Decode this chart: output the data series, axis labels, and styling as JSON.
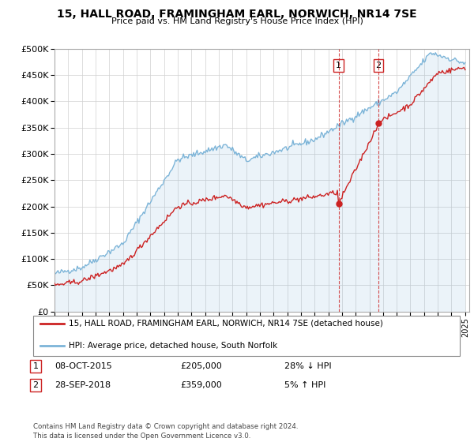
{
  "title": "15, HALL ROAD, FRAMINGHAM EARL, NORWICH, NR14 7SE",
  "subtitle": "Price paid vs. HM Land Registry's House Price Index (HPI)",
  "legend_line1": "15, HALL ROAD, FRAMINGHAM EARL, NORWICH, NR14 7SE (detached house)",
  "legend_line2": "HPI: Average price, detached house, South Norfolk",
  "footnote": "Contains HM Land Registry data © Crown copyright and database right 2024.\nThis data is licensed under the Open Government Licence v3.0.",
  "transactions": [
    {
      "label": "1",
      "date": "08-OCT-2015",
      "price": "£205,000",
      "hpi_pct": "28% ↓ HPI"
    },
    {
      "label": "2",
      "date": "28-SEP-2018",
      "price": "£359,000",
      "hpi_pct": "5% ↑ HPI"
    }
  ],
  "hpi_color": "#7cb4d8",
  "price_color": "#cc2222",
  "ylim": [
    0,
    500000
  ],
  "yticks": [
    0,
    50000,
    100000,
    150000,
    200000,
    250000,
    300000,
    350000,
    400000,
    450000,
    500000
  ],
  "year_start": 1995,
  "year_end": 2025,
  "t1_year": 2015.75,
  "t1_price": 205000,
  "t2_year": 2018.67,
  "t2_price": 359000
}
